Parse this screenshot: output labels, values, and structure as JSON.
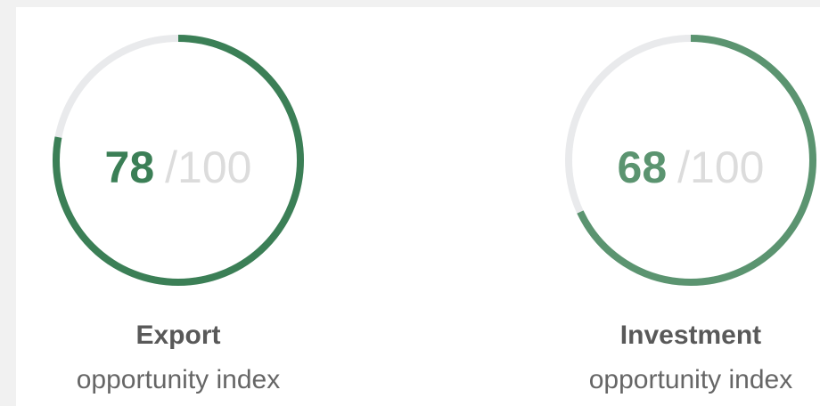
{
  "gauges": [
    {
      "value": 78,
      "max": {
        "value": 100,
        "label": "/100"
      },
      "title": "Export",
      "subtitle": "opportunity index",
      "color": "#3b7f56"
    },
    {
      "value": 68,
      "max": {
        "value": 100,
        "label": "/100"
      },
      "title": "Investment",
      "subtitle": "opportunity index",
      "color": "#5b9470"
    }
  ]
}
